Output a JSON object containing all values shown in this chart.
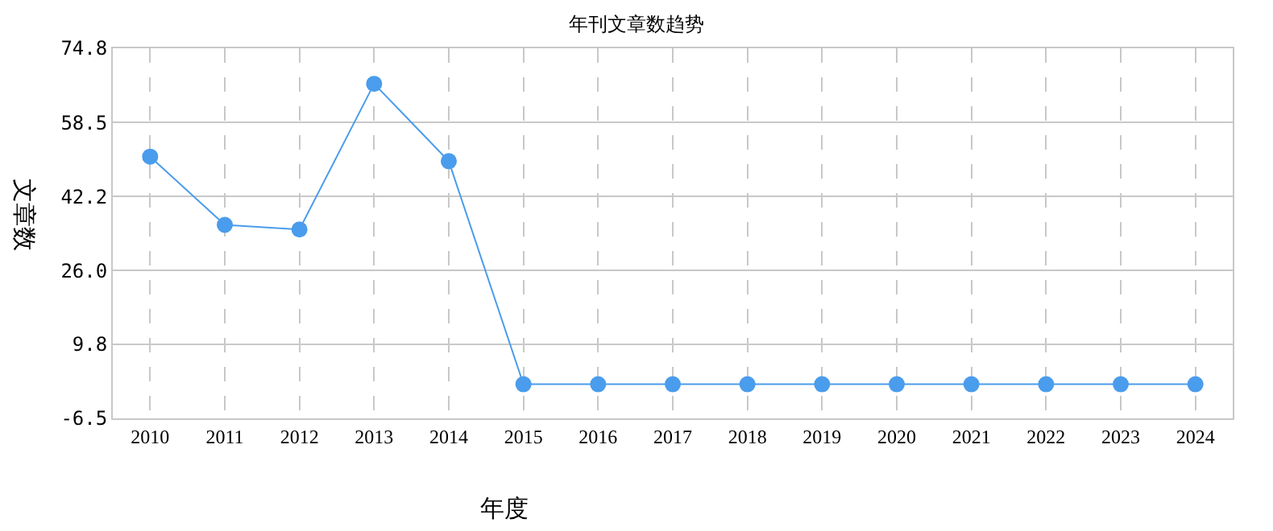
{
  "chart_data": {
    "type": "line",
    "title": "年刊文章数趋势",
    "xlabel": "年度",
    "ylabel": "文章数",
    "categories": [
      "2010",
      "2011",
      "2012",
      "2013",
      "2014",
      "2015",
      "2016",
      "2017",
      "2018",
      "2019",
      "2020",
      "2021",
      "2022",
      "2023",
      "2024"
    ],
    "series": [
      {
        "color": "#4a9cec",
        "values": [
          51,
          36,
          35,
          67,
          50,
          1,
          1,
          1,
          1,
          1,
          1,
          1,
          1,
          1,
          1
        ]
      }
    ],
    "ylim": [
      -6.5,
      74.8
    ],
    "yticks": [
      -6.5,
      9.8,
      {
        "value": 26,
        "label": "26.0"
      },
      42.2,
      58.5,
      74.8
    ],
    "grid": true,
    "marker": "circle",
    "line_style": "solid"
  }
}
